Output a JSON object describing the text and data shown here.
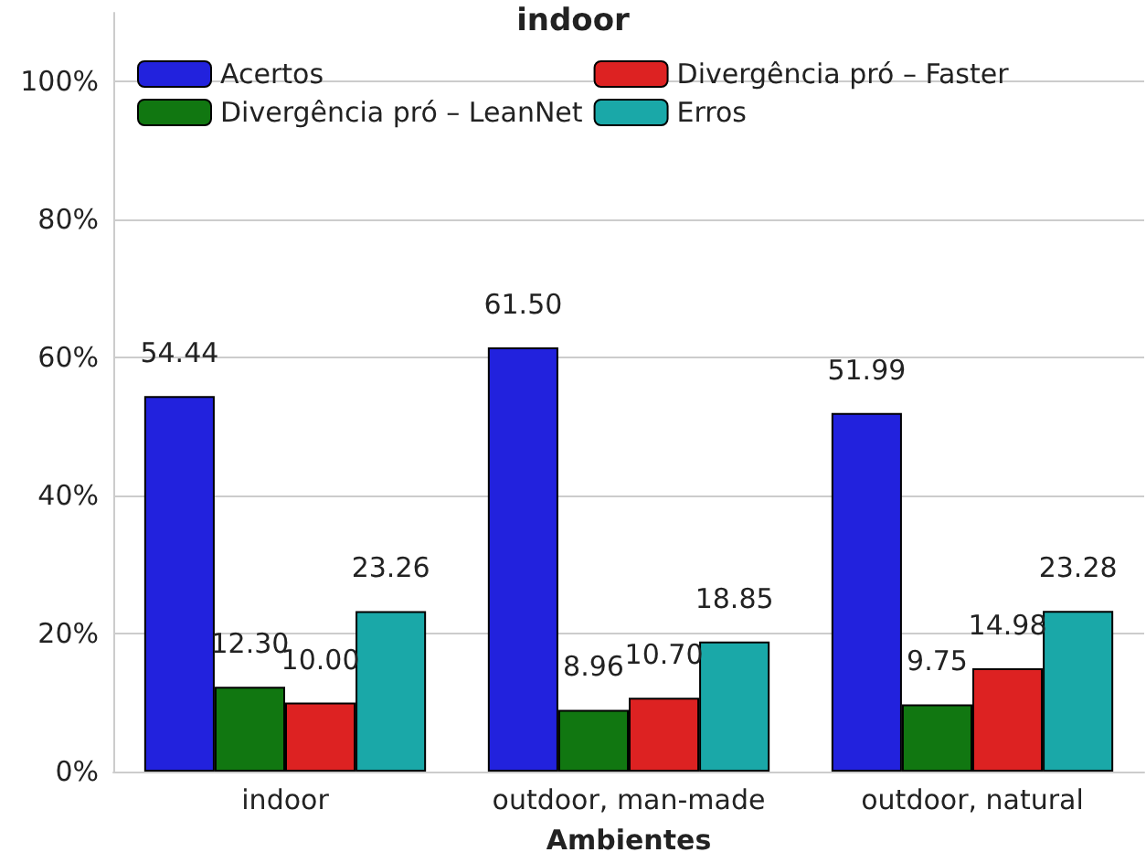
{
  "chart_data": {
    "type": "bar",
    "title": "indoor",
    "xlabel": "Ambientes",
    "categories": [
      "indoor",
      "outdoor, man-made",
      "outdoor, natural"
    ],
    "series": [
      {
        "name": "Acertos",
        "color": "#2222dd",
        "values": [
          54.44,
          61.5,
          51.99
        ],
        "value_labels": [
          "54.44",
          "61.50",
          "51.99"
        ]
      },
      {
        "name": "Divergência pró – LeanNet",
        "color": "#117711",
        "values": [
          12.3,
          8.96,
          9.75
        ],
        "value_labels": [
          "12.30",
          "8.96",
          "9.75"
        ]
      },
      {
        "name": "Divergência pró – Faster",
        "color": "#dd2222",
        "values": [
          10.0,
          10.7,
          14.98
        ],
        "value_labels": [
          "10.00",
          "10.70",
          "14.98"
        ]
      },
      {
        "name": "Erros",
        "color": "#1aa8a8",
        "values": [
          23.26,
          18.85,
          23.28
        ],
        "value_labels": [
          "23.26",
          "18.85",
          "23.28"
        ]
      }
    ],
    "ylim": [
      0,
      110
    ],
    "yticks": [
      {
        "value": 0,
        "label": "0%"
      },
      {
        "value": 20,
        "label": "20%"
      },
      {
        "value": 40,
        "label": "40%"
      },
      {
        "value": 60,
        "label": "60%"
      },
      {
        "value": 80,
        "label": "80%"
      },
      {
        "value": 100,
        "label": "100%"
      }
    ],
    "grid": "y",
    "legend": "top"
  }
}
